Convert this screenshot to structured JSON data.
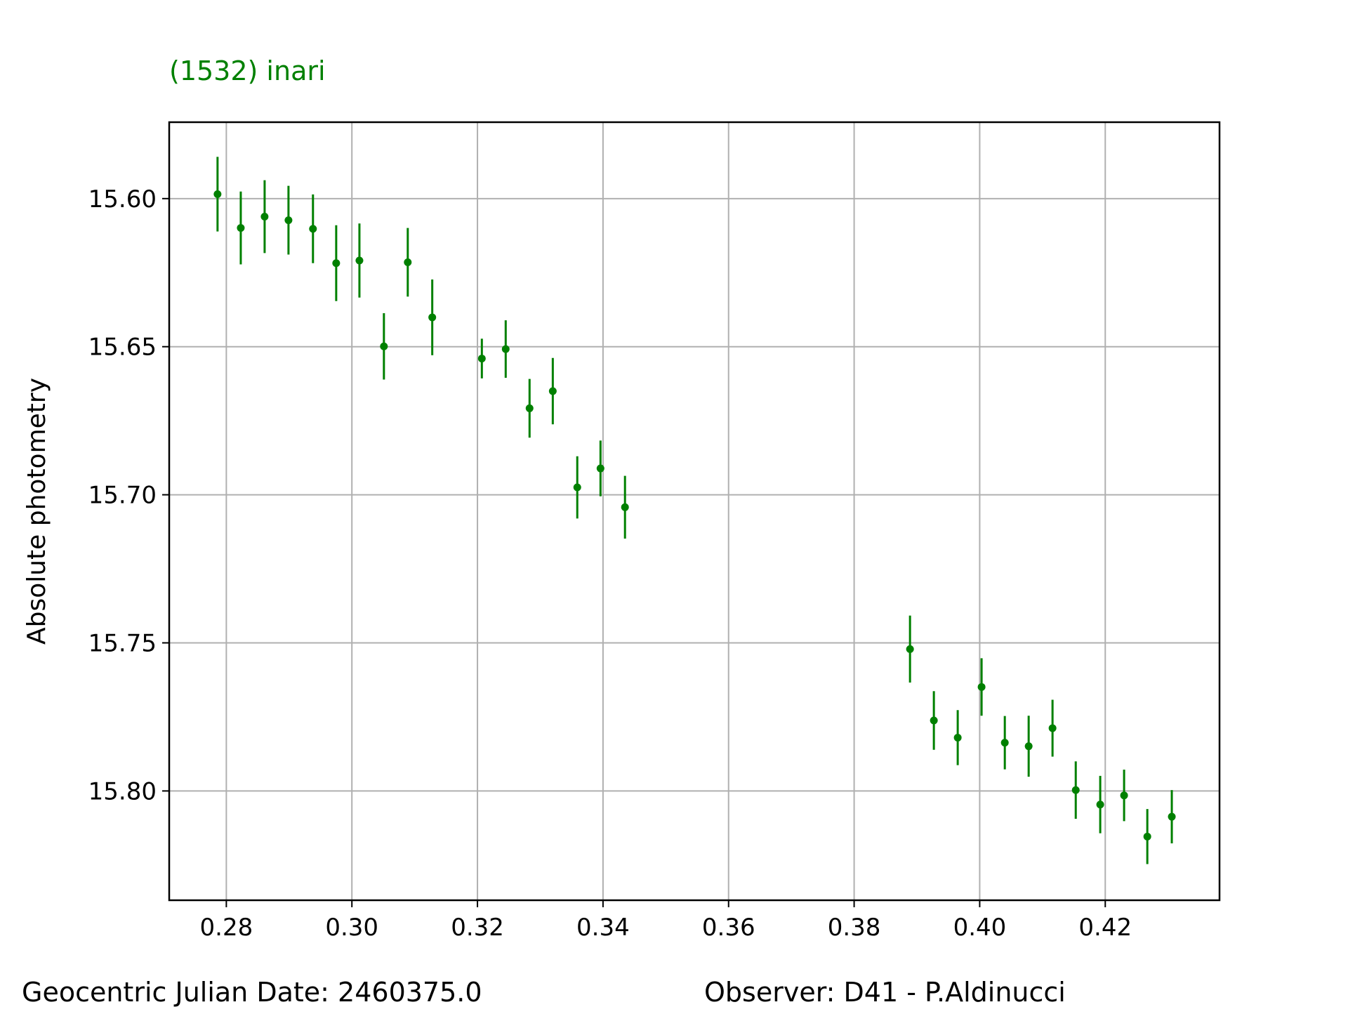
{
  "chart_data": {
    "type": "scatter",
    "title": "(1532) inari",
    "title_color": "#008000",
    "xlabel": "",
    "ylabel": "Absolute photometry",
    "xlim": [
      0.2709,
      0.4382
    ],
    "ylim": [
      15.5742,
      15.8369
    ],
    "y_inverted": true,
    "grid": true,
    "marker_color": "#008000",
    "x_ticks": [
      "0.28",
      "0.30",
      "0.32",
      "0.34",
      "0.36",
      "0.38",
      "0.40",
      "0.42"
    ],
    "y_ticks": [
      "15.60",
      "15.65",
      "15.70",
      "15.75",
      "15.80"
    ],
    "series": [
      {
        "x": [
          0.2786,
          0.2823,
          0.2861,
          0.2899,
          0.2938,
          0.2975,
          0.3012,
          0.3051,
          0.3089,
          0.3128,
          0.3207,
          0.3245,
          0.3283,
          0.332,
          0.3359,
          0.3396,
          0.3435,
          0.3889,
          0.3927,
          0.3965,
          0.4003,
          0.404,
          0.4078,
          0.4116,
          0.4153,
          0.4192,
          0.423,
          0.4267,
          0.4306
        ],
        "y": [
          15.5985,
          15.6099,
          15.6061,
          15.6073,
          15.6102,
          15.6218,
          15.6209,
          15.6499,
          15.6215,
          15.6401,
          15.654,
          15.6508,
          15.6708,
          15.665,
          15.6975,
          15.6911,
          15.7042,
          15.7521,
          15.7762,
          15.782,
          15.7649,
          15.7837,
          15.7849,
          15.7788,
          15.7997,
          15.8046,
          15.8015,
          15.8154,
          15.8087
        ],
        "err": [
          0.0126,
          0.0123,
          0.0123,
          0.0116,
          0.0116,
          0.0128,
          0.0125,
          0.0112,
          0.0116,
          0.0128,
          0.0067,
          0.0097,
          0.0099,
          0.0112,
          0.0105,
          0.0094,
          0.0106,
          0.0113,
          0.0099,
          0.0093,
          0.0097,
          0.009,
          0.0103,
          0.0096,
          0.0097,
          0.0097,
          0.0087,
          0.0093,
          0.009
        ]
      }
    ]
  },
  "footer": {
    "date_text": "Geocentric Julian Date: 2460375.0",
    "observer_text": "Observer: D41 - P.Aldinucci"
  }
}
